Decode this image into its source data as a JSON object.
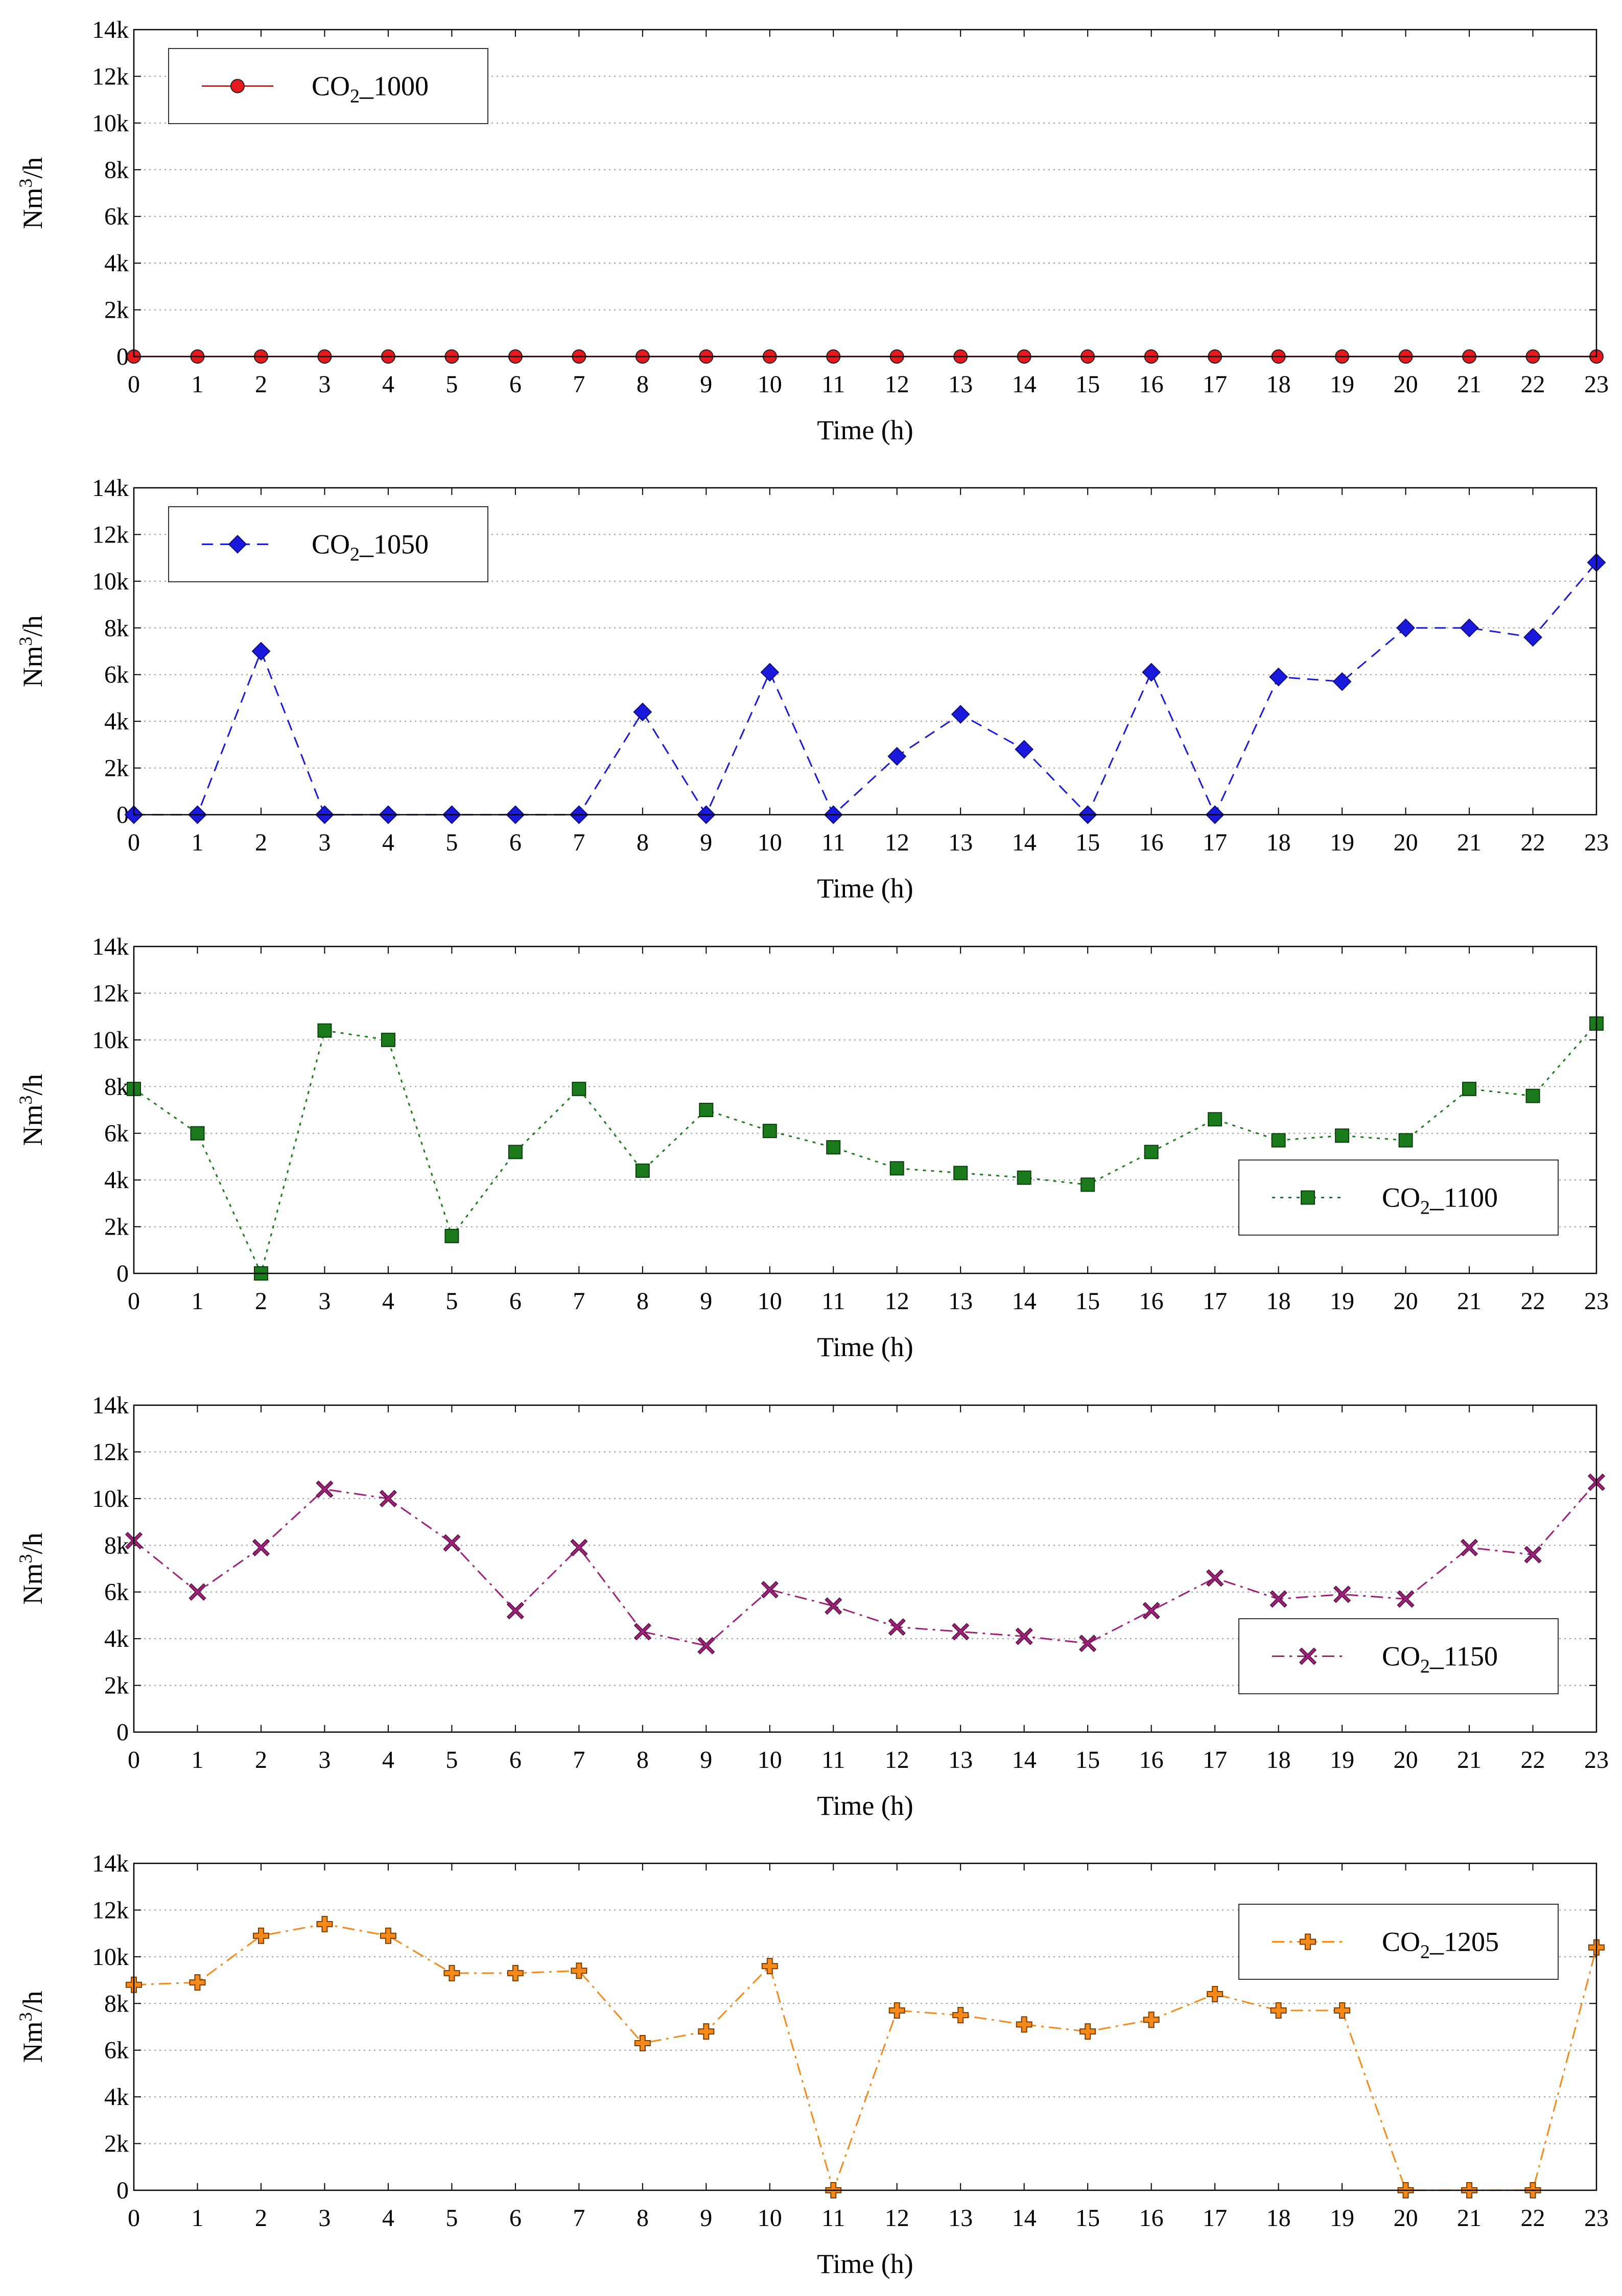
{
  "chart_data": [
    {
      "type": "line",
      "xlabel": "Time (h)",
      "ylabel": "Nm3/h",
      "ylabel_base": "Nm",
      "ylabel_sup": "3",
      "ylabel_rest": "/h",
      "x": [
        0,
        1,
        2,
        3,
        4,
        5,
        6,
        7,
        8,
        9,
        10,
        11,
        12,
        13,
        14,
        15,
        16,
        17,
        18,
        19,
        20,
        21,
        22,
        23
      ],
      "xlim": [
        0,
        23
      ],
      "ylim": [
        0,
        14000
      ],
      "yticks": [
        0,
        2000,
        4000,
        6000,
        8000,
        10000,
        12000,
        14000
      ],
      "ytick_labels": [
        "0",
        "2k",
        "4k",
        "6k",
        "8k",
        "10k",
        "12k",
        "14k"
      ],
      "grid": true,
      "legend_position": "top-left",
      "series": [
        {
          "name": "CO2_1000",
          "label_main": "CO",
          "label_sub": "2",
          "label_rest": "_1000",
          "color": "#e8191c",
          "marker": "circle",
          "line_style": "solid",
          "values": [
            0,
            0,
            0,
            0,
            0,
            0,
            0,
            0,
            0,
            0,
            0,
            0,
            0,
            0,
            0,
            0,
            0,
            0,
            0,
            0,
            0,
            0,
            0,
            0
          ]
        }
      ]
    },
    {
      "type": "line",
      "xlabel": "Time (h)",
      "ylabel": "Nm3/h",
      "ylabel_base": "Nm",
      "ylabel_sup": "3",
      "ylabel_rest": "/h",
      "x": [
        0,
        1,
        2,
        3,
        4,
        5,
        6,
        7,
        8,
        9,
        10,
        11,
        12,
        13,
        14,
        15,
        16,
        17,
        18,
        19,
        20,
        21,
        22,
        23
      ],
      "xlim": [
        0,
        23
      ],
      "ylim": [
        0,
        14000
      ],
      "yticks": [
        0,
        2000,
        4000,
        6000,
        8000,
        10000,
        12000,
        14000
      ],
      "ytick_labels": [
        "0",
        "2k",
        "4k",
        "6k",
        "8k",
        "10k",
        "12k",
        "14k"
      ],
      "grid": true,
      "legend_position": "top-left",
      "series": [
        {
          "name": "CO2_1050",
          "label_main": "CO",
          "label_sub": "2",
          "label_rest": "_1050",
          "color": "#1a1adc",
          "marker": "diamond",
          "line_style": "dashed",
          "values": [
            0,
            0,
            7000,
            0,
            0,
            0,
            0,
            0,
            4400,
            0,
            6100,
            0,
            2500,
            4300,
            2800,
            0,
            6100,
            0,
            5900,
            5700,
            8000,
            8000,
            7600,
            10800
          ]
        }
      ]
    },
    {
      "type": "line",
      "xlabel": "Time (h)",
      "ylabel": "Nm3/h",
      "ylabel_base": "Nm",
      "ylabel_sup": "3",
      "ylabel_rest": "/h",
      "x": [
        0,
        1,
        2,
        3,
        4,
        5,
        6,
        7,
        8,
        9,
        10,
        11,
        12,
        13,
        14,
        15,
        16,
        17,
        18,
        19,
        20,
        21,
        22,
        23
      ],
      "xlim": [
        0,
        23
      ],
      "ylim": [
        0,
        14000
      ],
      "yticks": [
        0,
        2000,
        4000,
        6000,
        8000,
        10000,
        12000,
        14000
      ],
      "ytick_labels": [
        "0",
        "2k",
        "4k",
        "6k",
        "8k",
        "10k",
        "12k",
        "14k"
      ],
      "grid": true,
      "legend_position": "center-right",
      "series": [
        {
          "name": "CO2_1100",
          "label_main": "CO",
          "label_sub": "2",
          "label_rest": "_1100",
          "color": "#1b7a1b",
          "marker": "square",
          "line_style": "dotted",
          "values": [
            7900,
            6000,
            0,
            10400,
            10000,
            1600,
            5200,
            7900,
            4400,
            7000,
            6100,
            5400,
            4500,
            4300,
            4100,
            3800,
            5200,
            6600,
            5700,
            5900,
            5700,
            7900,
            7600,
            10700
          ]
        }
      ]
    },
    {
      "type": "line",
      "xlabel": "Time (h)",
      "ylabel": "Nm3/h",
      "ylabel_base": "Nm",
      "ylabel_sup": "3",
      "ylabel_rest": "/h",
      "x": [
        0,
        1,
        2,
        3,
        4,
        5,
        6,
        7,
        8,
        9,
        10,
        11,
        12,
        13,
        14,
        15,
        16,
        17,
        18,
        19,
        20,
        21,
        22,
        23
      ],
      "xlim": [
        0,
        23
      ],
      "ylim": [
        0,
        14000
      ],
      "yticks": [
        0,
        2000,
        4000,
        6000,
        8000,
        10000,
        12000,
        14000
      ],
      "ytick_labels": [
        "0",
        "2k",
        "4k",
        "6k",
        "8k",
        "10k",
        "12k",
        "14k"
      ],
      "grid": true,
      "legend_position": "center-right",
      "series": [
        {
          "name": "CO2_1150",
          "label_main": "CO",
          "label_sub": "2",
          "label_rest": "_1150",
          "color": "#a0207a",
          "marker": "x",
          "line_style": "dashdot",
          "values": [
            8200,
            6000,
            7900,
            10400,
            10000,
            8100,
            5200,
            7900,
            4300,
            3700,
            6100,
            5400,
            4500,
            4300,
            4100,
            3800,
            5200,
            6600,
            5700,
            5900,
            5700,
            7900,
            7600,
            10700
          ]
        }
      ]
    },
    {
      "type": "line",
      "xlabel": "Time (h)",
      "ylabel": "Nm3/h",
      "ylabel_base": "Nm",
      "ylabel_sup": "3",
      "ylabel_rest": "/h",
      "x": [
        0,
        1,
        2,
        3,
        4,
        5,
        6,
        7,
        8,
        9,
        10,
        11,
        12,
        13,
        14,
        15,
        16,
        17,
        18,
        19,
        20,
        21,
        22,
        23
      ],
      "xlim": [
        0,
        23
      ],
      "ylim": [
        0,
        14000
      ],
      "yticks": [
        0,
        2000,
        4000,
        6000,
        8000,
        10000,
        12000,
        14000
      ],
      "ytick_labels": [
        "0",
        "2k",
        "4k",
        "6k",
        "8k",
        "10k",
        "12k",
        "14k"
      ],
      "grid": true,
      "legend_position": "top-right",
      "series": [
        {
          "name": "CO2_1205",
          "label_main": "CO",
          "label_sub": "2",
          "label_rest": "_1205",
          "color": "#f5891a",
          "marker": "plus",
          "line_style": "dashdot",
          "values": [
            8800,
            8900,
            10900,
            11400,
            10900,
            9300,
            9300,
            9400,
            6300,
            6800,
            9600,
            0,
            7700,
            7500,
            7100,
            6800,
            7300,
            8400,
            7700,
            7700,
            0,
            0,
            0,
            10400
          ]
        }
      ]
    }
  ]
}
